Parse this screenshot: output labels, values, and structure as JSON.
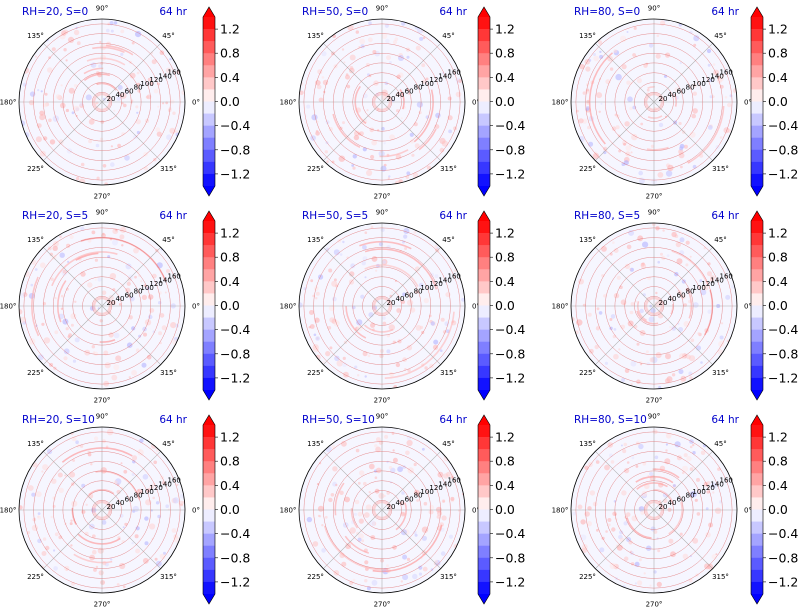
{
  "colors": {
    "title": "#0000cc",
    "grid": "#b0b0b0",
    "ring": "#e07070",
    "axis": "#000000",
    "max": "#ff0000",
    "min": "#0000ff",
    "mid": "#ffffff"
  },
  "common": {
    "time_label": "64 hr",
    "angle_labels": [
      "0°",
      "45°",
      "90°",
      "135°",
      "180°",
      "225°",
      "270°",
      "315°"
    ],
    "radial_ticks": [
      20,
      40,
      60,
      80,
      100,
      120,
      140,
      160
    ],
    "rmax": 170,
    "colorbar": {
      "ticks": [
        "1.2",
        "0.8",
        "0.4",
        "0.0",
        "−0.4",
        "−0.8",
        "−1.2"
      ],
      "tick_values": [
        1.2,
        0.8,
        0.4,
        0.0,
        -0.4,
        -0.8,
        -1.2
      ],
      "vmin": -1.4,
      "vmax": 1.4,
      "levels": 14,
      "cmap": "bwr",
      "extend": "both"
    }
  },
  "chart_data": [
    {
      "type": "heatmap",
      "projection": "polar",
      "title": "RH=20, S=0",
      "subtitle": "64 hr"
    },
    {
      "type": "heatmap",
      "projection": "polar",
      "title": "RH=50, S=0",
      "subtitle": "64 hr"
    },
    {
      "type": "heatmap",
      "projection": "polar",
      "title": "RH=80, S=0",
      "subtitle": "64 hr"
    },
    {
      "type": "heatmap",
      "projection": "polar",
      "title": "RH=20, S=5",
      "subtitle": "64 hr"
    },
    {
      "type": "heatmap",
      "projection": "polar",
      "title": "RH=50, S=5",
      "subtitle": "64 hr"
    },
    {
      "type": "heatmap",
      "projection": "polar",
      "title": "RH=80, S=5",
      "subtitle": "64 hr"
    },
    {
      "type": "heatmap",
      "projection": "polar",
      "title": "RH=20, S=10",
      "subtitle": "64 hr"
    },
    {
      "type": "heatmap",
      "projection": "polar",
      "title": "RH=50, S=10",
      "subtitle": "64 hr"
    },
    {
      "type": "heatmap",
      "projection": "polar",
      "title": "RH=80, S=10",
      "subtitle": "64 hr"
    }
  ]
}
